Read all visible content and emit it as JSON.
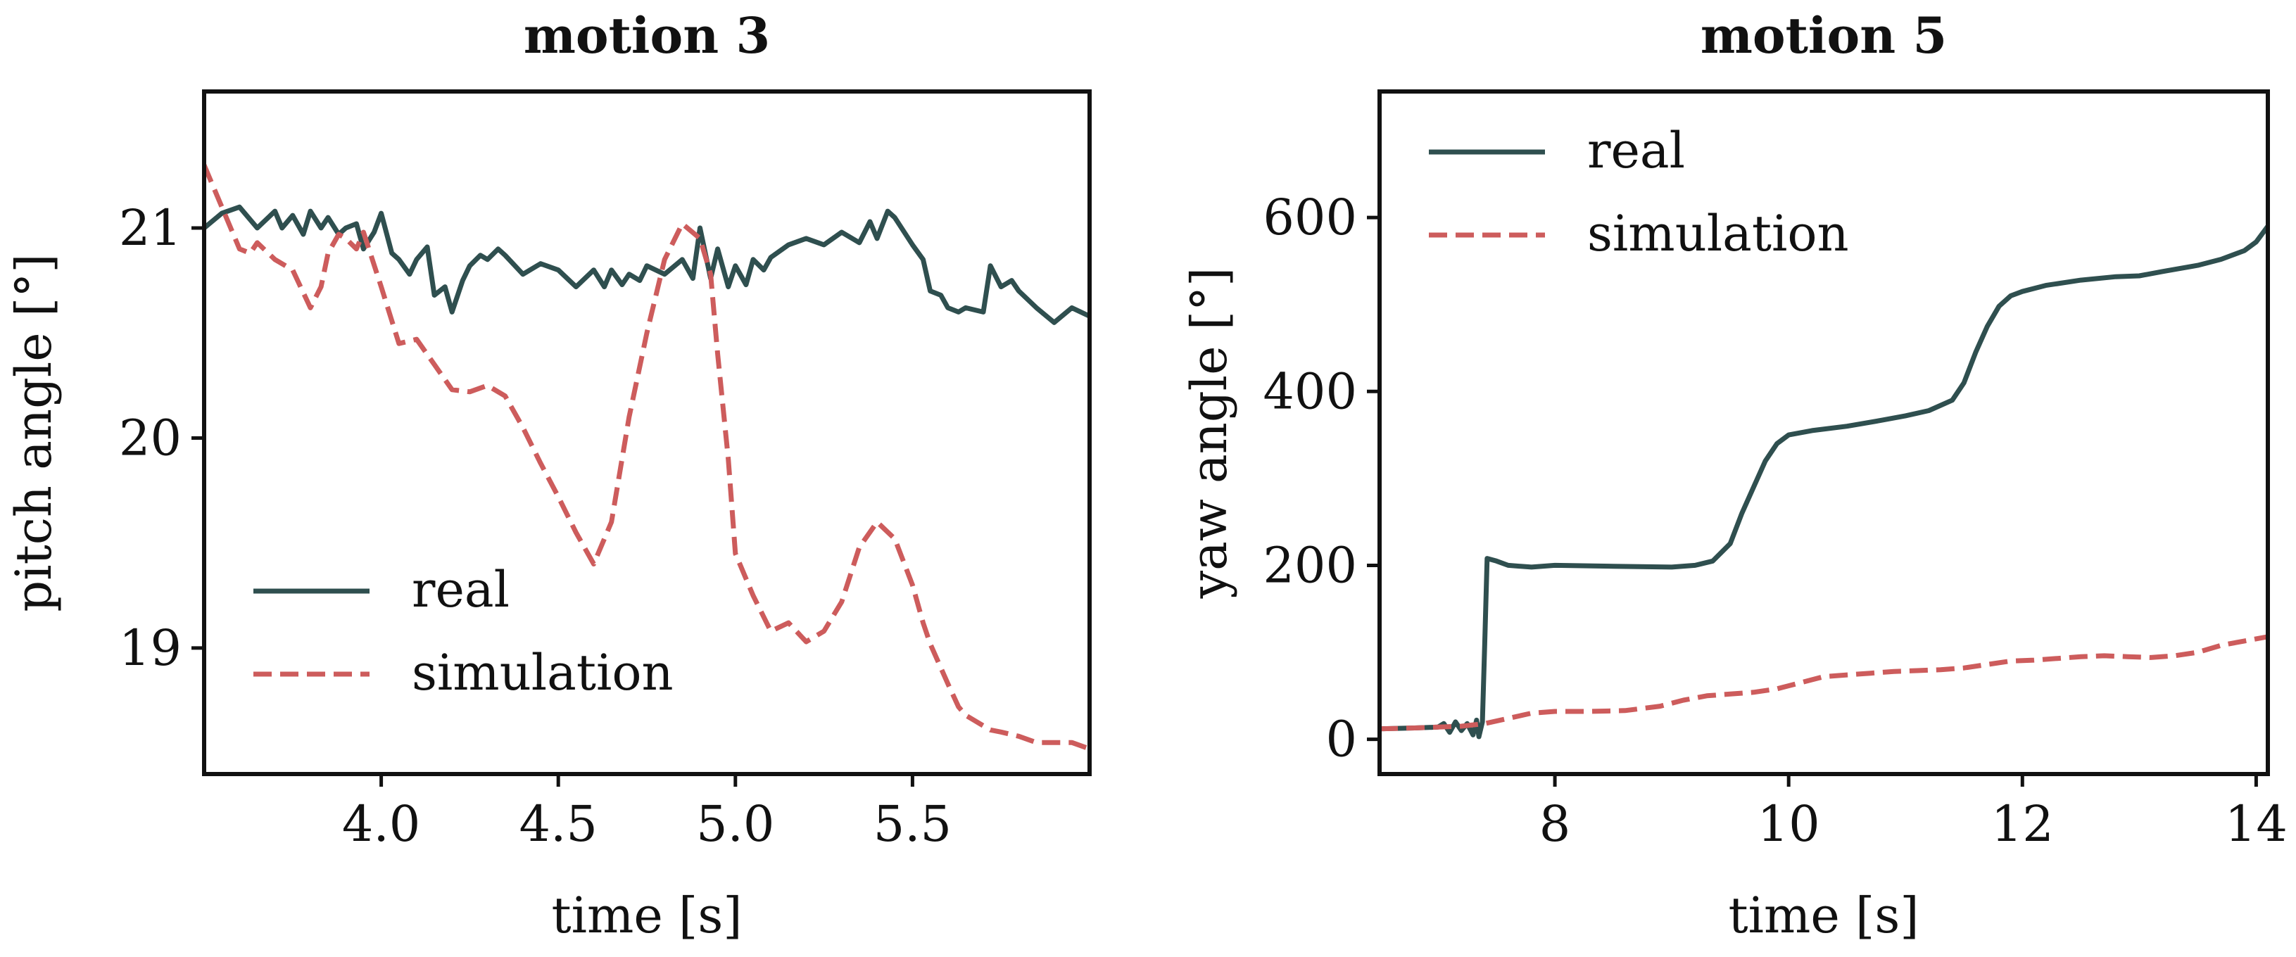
{
  "chart_data": [
    {
      "type": "line",
      "title": "motion 3",
      "xlabel": "time [s]",
      "ylabel": "pitch angle [°]",
      "xlim": [
        3.5,
        6.0
      ],
      "ylim": [
        18.4,
        21.65
      ],
      "xticks": [
        4.0,
        4.5,
        5.0,
        5.5
      ],
      "xtick_labels": [
        "4.0",
        "4.5",
        "5.0",
        "5.5"
      ],
      "yticks": [
        19,
        20,
        21
      ],
      "ytick_labels": [
        "19",
        "20",
        "21"
      ],
      "legend_position": "lower-left",
      "series": [
        {
          "name": "real",
          "style": "solid",
          "color": "#2f4f4f",
          "x": [
            3.5,
            3.55,
            3.6,
            3.65,
            3.7,
            3.72,
            3.75,
            3.78,
            3.8,
            3.83,
            3.85,
            3.88,
            3.9,
            3.93,
            3.95,
            3.98,
            4.0,
            4.03,
            4.05,
            4.08,
            4.1,
            4.13,
            4.15,
            4.18,
            4.2,
            4.23,
            4.25,
            4.28,
            4.3,
            4.33,
            4.35,
            4.4,
            4.45,
            4.5,
            4.55,
            4.6,
            4.63,
            4.65,
            4.68,
            4.7,
            4.73,
            4.75,
            4.8,
            4.85,
            4.88,
            4.9,
            4.93,
            4.95,
            4.98,
            5.0,
            5.03,
            5.05,
            5.08,
            5.1,
            5.15,
            5.2,
            5.25,
            5.3,
            5.35,
            5.38,
            5.4,
            5.43,
            5.45,
            5.5,
            5.53,
            5.55,
            5.58,
            5.6,
            5.63,
            5.65,
            5.7,
            5.72,
            5.75,
            5.78,
            5.8,
            5.85,
            5.9,
            5.95,
            6.0
          ],
          "y": [
            21.0,
            21.07,
            21.1,
            21.0,
            21.08,
            21.0,
            21.06,
            20.97,
            21.08,
            21.0,
            21.05,
            20.97,
            21.0,
            21.02,
            20.9,
            20.98,
            21.07,
            20.88,
            20.85,
            20.78,
            20.85,
            20.91,
            20.68,
            20.72,
            20.6,
            20.75,
            20.82,
            20.87,
            20.85,
            20.9,
            20.87,
            20.78,
            20.83,
            20.8,
            20.72,
            20.8,
            20.72,
            20.8,
            20.73,
            20.78,
            20.75,
            20.82,
            20.78,
            20.85,
            20.76,
            21.0,
            20.76,
            20.9,
            20.72,
            20.82,
            20.73,
            20.85,
            20.8,
            20.86,
            20.92,
            20.95,
            20.92,
            20.98,
            20.93,
            21.03,
            20.95,
            21.08,
            21.05,
            20.92,
            20.85,
            20.7,
            20.68,
            20.62,
            20.6,
            20.62,
            20.6,
            20.82,
            20.72,
            20.75,
            20.7,
            20.62,
            20.55,
            20.62,
            20.58
          ]
        },
        {
          "name": "simulation",
          "style": "dashed",
          "color": "#cd5c5c",
          "x": [
            3.5,
            3.55,
            3.6,
            3.63,
            3.65,
            3.7,
            3.75,
            3.8,
            3.83,
            3.85,
            3.88,
            3.9,
            3.93,
            3.95,
            4.0,
            4.05,
            4.1,
            4.15,
            4.2,
            4.25,
            4.3,
            4.35,
            4.4,
            4.45,
            4.5,
            4.55,
            4.6,
            4.65,
            4.7,
            4.75,
            4.8,
            4.85,
            4.9,
            4.93,
            4.95,
            4.98,
            5.0,
            5.05,
            5.1,
            5.15,
            5.2,
            5.25,
            5.3,
            5.35,
            5.4,
            5.45,
            5.5,
            5.53,
            5.55,
            5.6,
            5.63,
            5.65,
            5.7,
            5.72,
            5.75,
            5.8,
            5.85,
            5.9,
            5.95,
            6.0
          ],
          "y": [
            21.3,
            21.1,
            20.9,
            20.88,
            20.93,
            20.85,
            20.8,
            20.62,
            20.72,
            20.88,
            20.97,
            20.95,
            20.9,
            20.98,
            20.72,
            20.45,
            20.47,
            20.35,
            20.23,
            20.22,
            20.25,
            20.2,
            20.05,
            19.88,
            19.72,
            19.55,
            19.4,
            19.6,
            20.1,
            20.5,
            20.85,
            21.02,
            20.95,
            20.78,
            20.4,
            19.9,
            19.45,
            19.25,
            19.08,
            19.12,
            19.03,
            19.08,
            19.22,
            19.48,
            19.6,
            19.52,
            19.3,
            19.12,
            19.02,
            18.83,
            18.72,
            18.68,
            18.63,
            18.61,
            18.6,
            18.58,
            18.55,
            18.55,
            18.55,
            18.52
          ]
        }
      ]
    },
    {
      "type": "line",
      "title": "motion 5",
      "xlabel": "time [s]",
      "ylabel": "yaw angle [°]",
      "xlim": [
        6.5,
        14.1
      ],
      "ylim": [
        -40,
        745
      ],
      "xticks": [
        8,
        10,
        12,
        14
      ],
      "xtick_labels": [
        "8",
        "10",
        "12",
        "14"
      ],
      "yticks": [
        0,
        200,
        400,
        600
      ],
      "ytick_labels": [
        "0",
        "200",
        "400",
        "600"
      ],
      "legend_position": "top-left",
      "series": [
        {
          "name": "real",
          "style": "solid",
          "color": "#2f4f4f",
          "x": [
            6.5,
            6.8,
            7.0,
            7.05,
            7.1,
            7.15,
            7.2,
            7.25,
            7.3,
            7.33,
            7.35,
            7.38,
            7.4,
            7.42,
            7.5,
            7.6,
            7.8,
            8.0,
            8.5,
            9.0,
            9.2,
            9.35,
            9.5,
            9.6,
            9.7,
            9.8,
            9.9,
            10.0,
            10.2,
            10.5,
            10.8,
            11.0,
            11.2,
            11.4,
            11.5,
            11.6,
            11.7,
            11.8,
            11.9,
            12.0,
            12.2,
            12.5,
            12.8,
            13.0,
            13.2,
            13.5,
            13.7,
            13.9,
            14.0,
            14.1
          ],
          "y": [
            12,
            13,
            14,
            18,
            8,
            20,
            10,
            18,
            5,
            22,
            3,
            20,
            110,
            208,
            205,
            200,
            198,
            200,
            199,
            198,
            200,
            205,
            225,
            260,
            290,
            320,
            340,
            350,
            355,
            360,
            367,
            372,
            378,
            390,
            410,
            445,
            475,
            498,
            510,
            515,
            522,
            528,
            532,
            533,
            538,
            545,
            552,
            562,
            572,
            590
          ]
        },
        {
          "name": "simulation",
          "style": "dashed",
          "color": "#cd5c5c",
          "x": [
            6.5,
            6.8,
            7.0,
            7.2,
            7.4,
            7.6,
            7.8,
            8.0,
            8.3,
            8.6,
            8.9,
            9.1,
            9.3,
            9.5,
            9.7,
            9.9,
            10.1,
            10.3,
            10.5,
            10.7,
            10.9,
            11.1,
            11.3,
            11.5,
            11.7,
            11.9,
            12.1,
            12.3,
            12.5,
            12.7,
            12.9,
            13.1,
            13.3,
            13.5,
            13.7,
            13.9,
            14.1
          ],
          "y": [
            12,
            13,
            14,
            15,
            18,
            24,
            30,
            32,
            32,
            33,
            38,
            45,
            50,
            52,
            54,
            58,
            65,
            72,
            74,
            76,
            78,
            79,
            80,
            82,
            86,
            90,
            91,
            93,
            95,
            96,
            95,
            94,
            96,
            100,
            108,
            113,
            118
          ]
        }
      ]
    }
  ]
}
